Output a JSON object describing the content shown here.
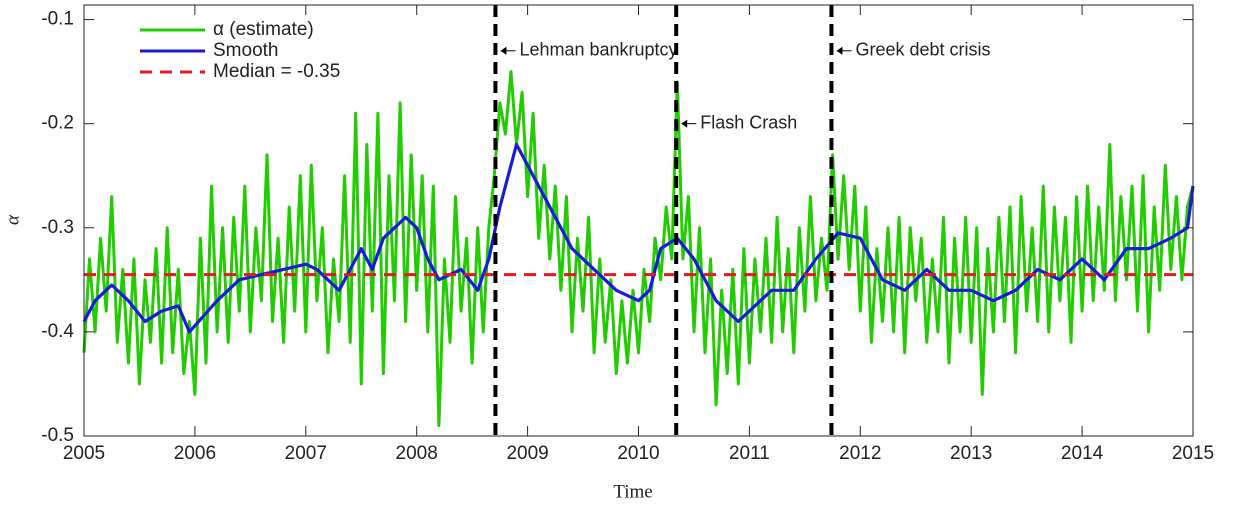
{
  "chart_data": {
    "type": "line",
    "xlabel": "Time",
    "ylabel": "α",
    "xlim": [
      2005,
      2015
    ],
    "ylim": [
      -0.5,
      -0.086
    ],
    "xticks": [
      2005,
      2006,
      2007,
      2008,
      2009,
      2010,
      2011,
      2012,
      2013,
      2014,
      2015
    ],
    "yticks": [
      -0.5,
      -0.4,
      -0.3,
      -0.2,
      -0.1
    ],
    "legend": "upper left",
    "series": [
      {
        "name": "α (estimate)",
        "color": "#22cc00",
        "x": [
          2005,
          2005.05,
          2005.1,
          2005.15,
          2005.2,
          2005.25,
          2005.3,
          2005.35,
          2005.4,
          2005.45,
          2005.5,
          2005.55,
          2005.6,
          2005.65,
          2005.7,
          2005.75,
          2005.8,
          2005.85,
          2005.9,
          2005.95,
          2006,
          2006.05,
          2006.1,
          2006.15,
          2006.2,
          2006.25,
          2006.3,
          2006.35,
          2006.4,
          2006.45,
          2006.5,
          2006.55,
          2006.6,
          2006.65,
          2006.7,
          2006.75,
          2006.8,
          2006.85,
          2006.9,
          2006.95,
          2007,
          2007.05,
          2007.1,
          2007.15,
          2007.2,
          2007.25,
          2007.3,
          2007.35,
          2007.4,
          2007.45,
          2007.5,
          2007.55,
          2007.6,
          2007.65,
          2007.7,
          2007.75,
          2007.8,
          2007.85,
          2007.9,
          2007.95,
          2008,
          2008.05,
          2008.1,
          2008.15,
          2008.2,
          2008.25,
          2008.3,
          2008.35,
          2008.4,
          2008.45,
          2008.5,
          2008.55,
          2008.6,
          2008.65,
          2008.7,
          2008.75,
          2008.8,
          2008.85,
          2008.9,
          2008.95,
          2009,
          2009.05,
          2009.1,
          2009.15,
          2009.2,
          2009.25,
          2009.3,
          2009.35,
          2009.4,
          2009.45,
          2009.5,
          2009.55,
          2009.6,
          2009.65,
          2009.7,
          2009.75,
          2009.8,
          2009.85,
          2009.9,
          2009.95,
          2010,
          2010.05,
          2010.1,
          2010.15,
          2010.2,
          2010.25,
          2010.3,
          2010.35,
          2010.4,
          2010.45,
          2010.5,
          2010.55,
          2010.6,
          2010.65,
          2010.7,
          2010.75,
          2010.8,
          2010.85,
          2010.9,
          2010.95,
          2011,
          2011.05,
          2011.1,
          2011.15,
          2011.2,
          2011.25,
          2011.3,
          2011.35,
          2011.4,
          2011.45,
          2011.5,
          2011.55,
          2011.6,
          2011.65,
          2011.7,
          2011.75,
          2011.8,
          2011.85,
          2011.9,
          2011.95,
          2012,
          2012.05,
          2012.1,
          2012.15,
          2012.2,
          2012.25,
          2012.3,
          2012.35,
          2012.4,
          2012.45,
          2012.5,
          2012.55,
          2012.6,
          2012.65,
          2012.7,
          2012.75,
          2012.8,
          2012.85,
          2012.9,
          2012.95,
          2013,
          2013.05,
          2013.1,
          2013.15,
          2013.2,
          2013.25,
          2013.3,
          2013.35,
          2013.4,
          2013.45,
          2013.5,
          2013.55,
          2013.6,
          2013.65,
          2013.7,
          2013.75,
          2013.8,
          2013.85,
          2013.9,
          2013.95,
          2014,
          2014.05,
          2014.1,
          2014.15,
          2014.2,
          2014.25,
          2014.3,
          2014.35,
          2014.4,
          2014.45,
          2014.5,
          2014.55,
          2014.6,
          2014.65,
          2014.7,
          2014.75,
          2014.8,
          2014.85,
          2014.9,
          2014.95,
          2015
        ],
        "values": [
          -0.42,
          -0.33,
          -0.4,
          -0.31,
          -0.38,
          -0.27,
          -0.41,
          -0.34,
          -0.43,
          -0.33,
          -0.45,
          -0.35,
          -0.41,
          -0.32,
          -0.43,
          -0.3,
          -0.42,
          -0.34,
          -0.44,
          -0.39,
          -0.46,
          -0.31,
          -0.43,
          -0.26,
          -0.4,
          -0.3,
          -0.41,
          -0.29,
          -0.38,
          -0.26,
          -0.4,
          -0.3,
          -0.37,
          -0.23,
          -0.39,
          -0.31,
          -0.41,
          -0.28,
          -0.38,
          -0.25,
          -0.4,
          -0.24,
          -0.37,
          -0.3,
          -0.42,
          -0.33,
          -0.39,
          -0.25,
          -0.41,
          -0.19,
          -0.45,
          -0.22,
          -0.38,
          -0.19,
          -0.44,
          -0.25,
          -0.37,
          -0.18,
          -0.39,
          -0.23,
          -0.36,
          -0.25,
          -0.4,
          -0.26,
          -0.49,
          -0.33,
          -0.41,
          -0.27,
          -0.38,
          -0.31,
          -0.43,
          -0.3,
          -0.4,
          -0.3,
          -0.25,
          -0.18,
          -0.21,
          -0.15,
          -0.22,
          -0.17,
          -0.27,
          -0.19,
          -0.31,
          -0.24,
          -0.33,
          -0.26,
          -0.36,
          -0.27,
          -0.4,
          -0.31,
          -0.38,
          -0.29,
          -0.42,
          -0.33,
          -0.41,
          -0.35,
          -0.44,
          -0.37,
          -0.43,
          -0.36,
          -0.42,
          -0.34,
          -0.39,
          -0.31,
          -0.35,
          -0.28,
          -0.33,
          -0.16,
          -0.33,
          -0.27,
          -0.4,
          -0.3,
          -0.42,
          -0.33,
          -0.47,
          -0.36,
          -0.44,
          -0.34,
          -0.45,
          -0.32,
          -0.43,
          -0.33,
          -0.4,
          -0.31,
          -0.41,
          -0.29,
          -0.4,
          -0.32,
          -0.42,
          -0.3,
          -0.38,
          -0.27,
          -0.37,
          -0.31,
          -0.36,
          -0.23,
          -0.33,
          -0.25,
          -0.34,
          -0.26,
          -0.38,
          -0.28,
          -0.41,
          -0.32,
          -0.39,
          -0.3,
          -0.4,
          -0.29,
          -0.42,
          -0.3,
          -0.37,
          -0.31,
          -0.41,
          -0.33,
          -0.4,
          -0.29,
          -0.43,
          -0.31,
          -0.4,
          -0.29,
          -0.41,
          -0.3,
          -0.46,
          -0.32,
          -0.4,
          -0.29,
          -0.39,
          -0.28,
          -0.42,
          -0.27,
          -0.38,
          -0.3,
          -0.39,
          -0.26,
          -0.4,
          -0.28,
          -0.37,
          -0.29,
          -0.41,
          -0.27,
          -0.38,
          -0.26,
          -0.37,
          -0.28,
          -0.36,
          -0.22,
          -0.37,
          -0.27,
          -0.35,
          -0.26,
          -0.38,
          -0.25,
          -0.4,
          -0.28,
          -0.36,
          -0.24,
          -0.34,
          -0.27,
          -0.35,
          -0.28,
          -0.26
        ]
      },
      {
        "name": "Smooth",
        "color": "#1a1adb",
        "x": [
          2005,
          2005.1,
          2005.25,
          2005.4,
          2005.55,
          2005.7,
          2005.85,
          2005.95,
          2006.2,
          2006.4,
          2006.6,
          2006.8,
          2007,
          2007.1,
          2007.3,
          2007.5,
          2007.6,
          2007.7,
          2007.9,
          2008,
          2008.1,
          2008.2,
          2008.4,
          2008.55,
          2008.65,
          2008.75,
          2008.9,
          2009,
          2009.2,
          2009.4,
          2009.6,
          2009.8,
          2010,
          2010.1,
          2010.2,
          2010.35,
          2010.5,
          2010.7,
          2010.9,
          2011,
          2011.2,
          2011.4,
          2011.6,
          2011.8,
          2012,
          2012.2,
          2012.4,
          2012.6,
          2012.8,
          2013,
          2013.2,
          2013.4,
          2013.6,
          2013.8,
          2014,
          2014.2,
          2014.4,
          2014.6,
          2014.8,
          2014.95,
          2015
        ],
        "values": [
          -0.39,
          -0.37,
          -0.355,
          -0.37,
          -0.39,
          -0.38,
          -0.375,
          -0.4,
          -0.37,
          -0.35,
          -0.345,
          -0.34,
          -0.335,
          -0.34,
          -0.36,
          -0.32,
          -0.34,
          -0.31,
          -0.29,
          -0.3,
          -0.33,
          -0.35,
          -0.34,
          -0.36,
          -0.33,
          -0.28,
          -0.22,
          -0.24,
          -0.28,
          -0.32,
          -0.34,
          -0.36,
          -0.37,
          -0.36,
          -0.32,
          -0.31,
          -0.33,
          -0.37,
          -0.39,
          -0.38,
          -0.36,
          -0.36,
          -0.33,
          -0.305,
          -0.31,
          -0.35,
          -0.36,
          -0.34,
          -0.36,
          -0.36,
          -0.37,
          -0.36,
          -0.34,
          -0.35,
          -0.33,
          -0.35,
          -0.32,
          -0.32,
          -0.31,
          -0.3,
          -0.26
        ]
      }
    ],
    "reference_line": {
      "name": "Median = -0.35",
      "value": -0.345,
      "color": "#e31a1c"
    },
    "events": [
      {
        "x": 2008.71,
        "label": "Lehman bankruptcy",
        "y": -0.13
      },
      {
        "x": 2010.34,
        "label": "Flash Crash",
        "y": -0.2
      },
      {
        "x": 2011.74,
        "label": "Greek debt crisis",
        "y": -0.13
      }
    ]
  }
}
